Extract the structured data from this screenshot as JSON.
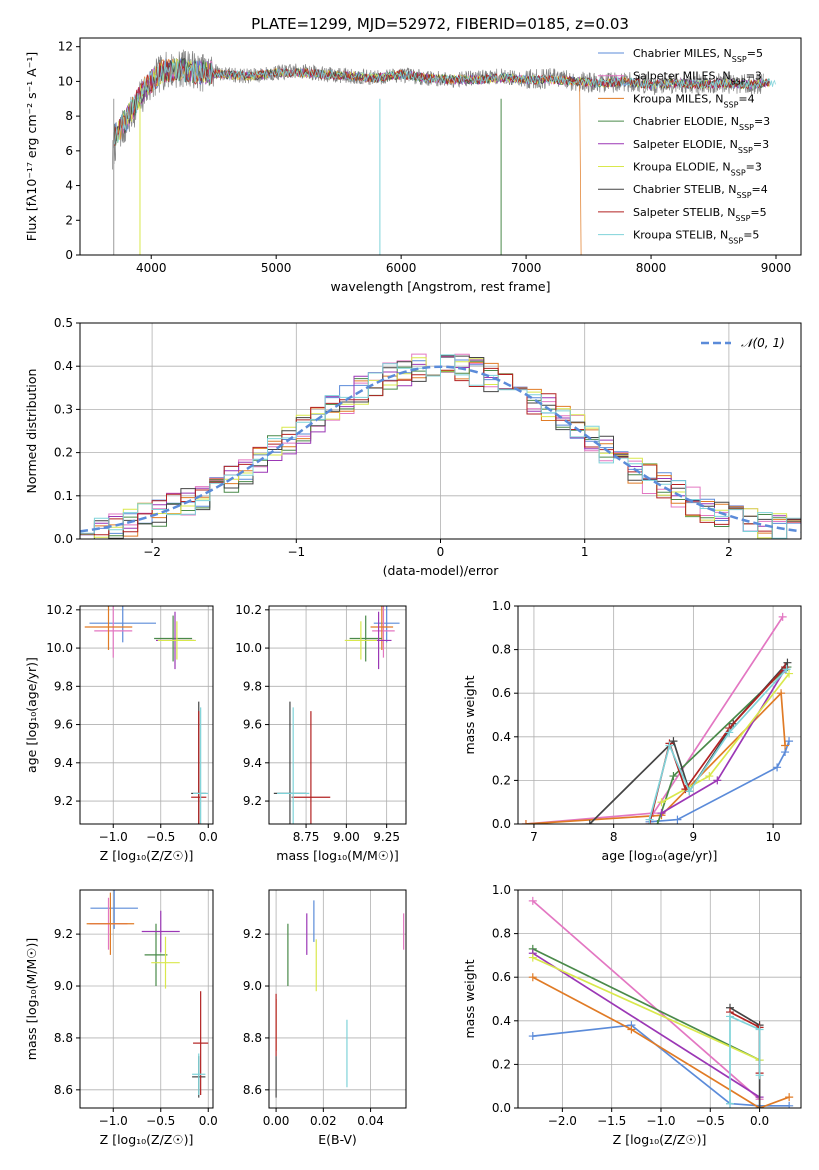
{
  "title": "PLATE=1299, MJD=52972, FIBERID=0185, z=0.03",
  "chart_data": [
    {
      "id": "spectrum",
      "type": "line",
      "xlabel": "wavelength [Angstrom, rest frame]",
      "ylabel": "Flux [fλ10⁻¹⁷ erg cm⁻² s⁻¹ A⁻¹]",
      "xlim": [
        3430,
        9200
      ],
      "ylim": [
        0,
        12.5
      ],
      "xticks": [
        4000,
        5000,
        6000,
        7000,
        8000,
        9000
      ],
      "yticks": [
        0,
        2,
        4,
        6,
        8,
        10,
        12
      ],
      "grid": false,
      "legend": "upper right",
      "observed": {
        "x": [
          3690,
          3700,
          3750,
          3800,
          3850,
          3900,
          3950,
          4000,
          4050,
          4100,
          4200,
          4300,
          4400,
          4500,
          4600,
          4800,
          5000,
          5200,
          5400,
          5600,
          5800,
          6000,
          6200,
          6400,
          6600,
          6800,
          7000,
          7200,
          7400,
          7600,
          7800,
          8000,
          8200,
          8400,
          8600,
          8800,
          8900
        ],
        "y": [
          5.5,
          6.2,
          7.1,
          7.5,
          8.2,
          8.9,
          9.4,
          9.9,
          10.3,
          10.6,
          10.7,
          10.8,
          10.5,
          10.6,
          10.4,
          10.3,
          10.5,
          10.6,
          10.4,
          10.3,
          10.2,
          10.4,
          10.2,
          10.1,
          10.2,
          10.3,
          10.1,
          10.2,
          10.0,
          9.9,
          10.0,
          9.8,
          9.9,
          9.8,
          9.9,
          9.8,
          9.9
        ]
      },
      "model": {
        "x": [
          3700,
          3750,
          3800,
          3850,
          3900,
          3950,
          4000,
          4100,
          4200,
          4400,
          4600,
          4800,
          5000,
          5200,
          5400,
          5600,
          5800,
          6000,
          6200,
          6400,
          6600,
          6800,
          7000,
          7200,
          7400
        ],
        "y": [
          6.8,
          7.3,
          7.8,
          8.4,
          9.0,
          9.6,
          10.0,
          10.6,
          10.7,
          10.5,
          10.4,
          10.3,
          10.5,
          10.5,
          10.4,
          10.3,
          10.2,
          10.4,
          10.2,
          10.1,
          10.1,
          10.2,
          10.1,
          10.1,
          10.0
        ]
      },
      "series": [
        {
          "name": "Chabrier MILES, N_SSP=5",
          "color": "#5b8bd9"
        },
        {
          "name": "Salpeter MILES, N_SSP=3",
          "color": "#e377c2"
        },
        {
          "name": "Kroupa MILES, N_SSP=4",
          "color": "#e07b26"
        },
        {
          "name": "Chabrier ELODIE, N_SSP=3",
          "color": "#4a8a4a"
        },
        {
          "name": "Salpeter ELODIE, N_SSP=3",
          "color": "#9b37b5"
        },
        {
          "name": "Kroupa ELODIE, N_SSP=3",
          "color": "#d9e84c"
        },
        {
          "name": "Chabrier STELIB, N_SSP=4",
          "color": "#444444"
        },
        {
          "name": "Salpeter STELIB, N_SSP=5",
          "color": "#b22222"
        },
        {
          "name": "Kroupa STELIB, N_SSP=5",
          "color": "#7fd3d9"
        }
      ]
    },
    {
      "id": "residuals",
      "type": "line",
      "xlabel": "(data-model)/error",
      "ylabel": "Normed distribution",
      "xlim": [
        -2.5,
        2.5
      ],
      "ylim": [
        0,
        0.5
      ],
      "xticks": [
        -2,
        -1,
        0,
        1,
        2
      ],
      "yticks": [
        0.0,
        0.1,
        0.2,
        0.3,
        0.4,
        0.5
      ],
      "grid": true,
      "legend": "upper right",
      "reference_label": "𝒩(0, 1)",
      "bin_edges_start": -2.5,
      "bin_width": 0.1,
      "n_bins": 50
    },
    {
      "id": "age_vs_Z",
      "type": "scatter",
      "xlabel": "Z [log₁₀(Z/Z☉)]",
      "ylabel": "age [log₁₀(age/yr)]",
      "xlim": [
        -1.35,
        0.05
      ],
      "ylim": [
        9.08,
        10.22
      ],
      "xticks": [
        -1.0,
        -0.5,
        0.0
      ],
      "yticks": [
        9.2,
        9.4,
        9.6,
        9.8,
        10.0,
        10.2
      ],
      "points": [
        {
          "x": -0.9,
          "y": 10.13,
          "xerr": 0.35,
          "yerr": 0.1,
          "color": "#5b8bd9"
        },
        {
          "x": -1.0,
          "y": 10.09,
          "xerr": 0.2,
          "yerr": 0.14,
          "color": "#e377c2"
        },
        {
          "x": -1.05,
          "y": 10.11,
          "xerr": 0.25,
          "yerr": 0.12,
          "color": "#e07b26"
        },
        {
          "x": -0.37,
          "y": 10.05,
          "xerr": 0.2,
          "yerr": 0.12,
          "color": "#4a8a4a"
        },
        {
          "x": -0.35,
          "y": 10.04,
          "xerr": 0.2,
          "yerr": 0.15,
          "color": "#9b37b5"
        },
        {
          "x": -0.33,
          "y": 10.04,
          "xerr": 0.2,
          "yerr": 0.1,
          "color": "#d9e84c"
        },
        {
          "x": -0.1,
          "y": 9.24,
          "xerr": 0.08,
          "yerr": 0.48,
          "color": "#444444"
        },
        {
          "x": -0.1,
          "y": 9.22,
          "xerr": 0.08,
          "yerr": 0.45,
          "color": "#b22222"
        },
        {
          "x": -0.08,
          "y": 9.24,
          "xerr": 0.08,
          "yerr": 0.45,
          "color": "#7fd3d9"
        }
      ]
    },
    {
      "id": "age_vs_mass",
      "type": "scatter",
      "xlabel": "mass [log₁₀(M/M☉)]",
      "ylabel": "",
      "xlim": [
        8.52,
        9.37
      ],
      "ylim": [
        9.08,
        10.22
      ],
      "xticks": [
        8.75,
        9.0,
        9.25
      ],
      "yticks": [
        9.2,
        9.4,
        9.6,
        9.8,
        10.0,
        10.2
      ],
      "points": [
        {
          "x": 9.25,
          "y": 10.13,
          "xerr": 0.08,
          "yerr": 0.1,
          "color": "#5b8bd9"
        },
        {
          "x": 9.23,
          "y": 10.09,
          "xerr": 0.07,
          "yerr": 0.14,
          "color": "#e377c2"
        },
        {
          "x": 9.22,
          "y": 10.11,
          "xerr": 0.07,
          "yerr": 0.12,
          "color": "#e07b26"
        },
        {
          "x": 9.12,
          "y": 10.05,
          "xerr": 0.1,
          "yerr": 0.12,
          "color": "#4a8a4a"
        },
        {
          "x": 9.2,
          "y": 10.04,
          "xerr": 0.08,
          "yerr": 0.15,
          "color": "#9b37b5"
        },
        {
          "x": 9.09,
          "y": 10.04,
          "xerr": 0.1,
          "yerr": 0.1,
          "color": "#d9e84c"
        },
        {
          "x": 8.65,
          "y": 9.24,
          "xerr": 0.1,
          "yerr": 0.48,
          "color": "#444444"
        },
        {
          "x": 8.78,
          "y": 9.22,
          "xerr": 0.12,
          "yerr": 0.45,
          "color": "#b22222"
        },
        {
          "x": 8.67,
          "y": 9.24,
          "xerr": 0.1,
          "yerr": 0.45,
          "color": "#7fd3d9"
        }
      ]
    },
    {
      "id": "massweight_vs_age",
      "type": "line",
      "xlabel": "age [log₁₀(age/yr)]",
      "ylabel": "mass weight",
      "xlim": [
        6.8,
        10.35
      ],
      "ylim": [
        0,
        1.0
      ],
      "xticks": [
        7,
        8,
        9,
        10
      ],
      "yticks": [
        0.0,
        0.2,
        0.4,
        0.6,
        0.8,
        1.0
      ],
      "series": [
        {
          "color": "#5b8bd9",
          "x": [
            8.45,
            8.8,
            10.05,
            10.15,
            10.2
          ],
          "y": [
            0.01,
            0.02,
            0.26,
            0.33,
            0.38
          ]
        },
        {
          "color": "#e377c2",
          "x": [
            6.9,
            8.5,
            10.12
          ],
          "y": [
            0.0,
            0.05,
            0.95
          ]
        },
        {
          "color": "#e07b26",
          "x": [
            6.9,
            8.6,
            10.1,
            10.15
          ],
          "y": [
            0.0,
            0.04,
            0.6,
            0.36
          ]
        },
        {
          "color": "#4a8a4a",
          "x": [
            8.55,
            8.75,
            10.18
          ],
          "y": [
            0.0,
            0.22,
            0.72
          ]
        },
        {
          "color": "#9b37b5",
          "x": [
            8.6,
            9.3,
            10.15
          ],
          "y": [
            0.05,
            0.2,
            0.71
          ]
        },
        {
          "color": "#d9e84c",
          "x": [
            8.6,
            9.2,
            10.2
          ],
          "y": [
            0.1,
            0.22,
            0.69
          ]
        },
        {
          "color": "#444444",
          "x": [
            7.7,
            8.75,
            8.95,
            9.5,
            10.18
          ],
          "y": [
            0.0,
            0.38,
            0.15,
            0.46,
            0.74
          ]
        },
        {
          "color": "#b22222",
          "x": [
            8.45,
            8.7,
            8.9,
            9.45,
            10.15
          ],
          "y": [
            0.0,
            0.37,
            0.16,
            0.44,
            0.72
          ]
        },
        {
          "color": "#7fd3d9",
          "x": [
            8.45,
            8.7,
            8.95,
            9.45,
            10.17
          ],
          "y": [
            0.02,
            0.36,
            0.15,
            0.42,
            0.71
          ]
        }
      ]
    },
    {
      "id": "mass_vs_Z",
      "type": "scatter",
      "xlabel": "Z [log₁₀(Z/Z☉)]",
      "ylabel": "mass [log₁₀(M/M☉)]",
      "xlim": [
        -1.35,
        0.05
      ],
      "ylim": [
        8.53,
        9.37
      ],
      "xticks": [
        -1.0,
        -0.5,
        0.0
      ],
      "yticks": [
        8.6,
        8.8,
        9.0,
        9.2
      ],
      "points": [
        {
          "x": -0.99,
          "y": 9.3,
          "xerr": 0.25,
          "yerr": 0.08,
          "color": "#5b8bd9"
        },
        {
          "x": -1.05,
          "y": 9.24,
          "xerr": 0.2,
          "yerr": 0.1,
          "color": "#e377c2"
        },
        {
          "x": -1.03,
          "y": 9.24,
          "xerr": 0.25,
          "yerr": 0.12,
          "color": "#e07b26"
        },
        {
          "x": -0.55,
          "y": 9.12,
          "xerr": 0.12,
          "yerr": 0.12,
          "color": "#4a8a4a"
        },
        {
          "x": -0.5,
          "y": 9.21,
          "xerr": 0.2,
          "yerr": 0.08,
          "color": "#9b37b5"
        },
        {
          "x": -0.45,
          "y": 9.09,
          "xerr": 0.15,
          "yerr": 0.1,
          "color": "#d9e84c"
        },
        {
          "x": -0.1,
          "y": 8.65,
          "xerr": 0.07,
          "yerr": 0.08,
          "color": "#444444"
        },
        {
          "x": -0.08,
          "y": 8.78,
          "xerr": 0.08,
          "yerr": 0.2,
          "color": "#b22222"
        },
        {
          "x": -0.1,
          "y": 8.66,
          "xerr": 0.07,
          "yerr": 0.08,
          "color": "#7fd3d9"
        }
      ]
    },
    {
      "id": "mass_vs_ebv",
      "type": "scatter",
      "xlabel": "E(B-V)",
      "ylabel": "",
      "xlim": [
        -0.003,
        0.055
      ],
      "ylim": [
        8.53,
        9.37
      ],
      "xticks": [
        0.0,
        0.02,
        0.04
      ],
      "yticks": [
        8.6,
        8.8,
        9.0,
        9.2
      ],
      "points": [
        {
          "x": 0.016,
          "y": 9.25,
          "yerr": 0.08,
          "color": "#5b8bd9"
        },
        {
          "x": 0.054,
          "y": 9.21,
          "yerr": 0.07,
          "color": "#e377c2"
        },
        {
          "x": 0.0,
          "y": 8.85,
          "yerr": 0.1,
          "color": "#e07b26"
        },
        {
          "x": 0.005,
          "y": 9.12,
          "yerr": 0.12,
          "color": "#4a8a4a"
        },
        {
          "x": 0.013,
          "y": 9.2,
          "yerr": 0.08,
          "color": "#9b37b5"
        },
        {
          "x": 0.017,
          "y": 9.08,
          "yerr": 0.1,
          "color": "#d9e84c"
        },
        {
          "x": 0.0,
          "y": 8.65,
          "yerr": 0.08,
          "color": "#444444"
        },
        {
          "x": 0.0,
          "y": 8.85,
          "yerr": 0.12,
          "color": "#b22222"
        },
        {
          "x": 0.03,
          "y": 8.74,
          "yerr": 0.13,
          "color": "#7fd3d9"
        }
      ]
    },
    {
      "id": "massweight_vs_Z",
      "type": "line",
      "xlabel": "Z [log₁₀(Z/Z☉)]",
      "ylabel": "mass weight",
      "xlim": [
        -2.45,
        0.42
      ],
      "ylim": [
        0,
        1.0
      ],
      "xticks": [
        -2.0,
        -1.5,
        -1.0,
        -0.5,
        0.0
      ],
      "yticks": [
        0.0,
        0.2,
        0.4,
        0.6,
        0.8,
        1.0
      ],
      "series": [
        {
          "color": "#5b8bd9",
          "x": [
            -2.3,
            -1.3,
            -0.3,
            0.0,
            0.3
          ],
          "y": [
            0.33,
            0.38,
            0.02,
            0.01,
            0.01
          ]
        },
        {
          "color": "#e377c2",
          "x": [
            -2.3,
            0.0
          ],
          "y": [
            0.95,
            0.04
          ]
        },
        {
          "color": "#e07b26",
          "x": [
            -2.3,
            -1.3,
            0.0,
            0.3
          ],
          "y": [
            0.6,
            0.36,
            0.0,
            0.05
          ]
        },
        {
          "color": "#4a8a4a",
          "x": [
            -2.3,
            0.0
          ],
          "y": [
            0.73,
            0.22
          ]
        },
        {
          "color": "#9b37b5",
          "x": [
            -2.3,
            0.0
          ],
          "y": [
            0.71,
            0.05
          ]
        },
        {
          "color": "#d9e84c",
          "x": [
            -2.3,
            0.0
          ],
          "y": [
            0.69,
            0.22
          ]
        },
        {
          "color": "#444444",
          "x": [
            -0.3,
            0.0,
            0.0
          ],
          "y": [
            0.46,
            0.38,
            0.0
          ]
        },
        {
          "color": "#b22222",
          "x": [
            -0.3,
            0.0,
            0.0
          ],
          "y": [
            0.44,
            0.37,
            0.16
          ]
        },
        {
          "color": "#7fd3d9",
          "x": [
            -0.3,
            -0.3,
            0.0,
            0.0
          ],
          "y": [
            0.02,
            0.42,
            0.36,
            0.15
          ]
        }
      ]
    }
  ]
}
